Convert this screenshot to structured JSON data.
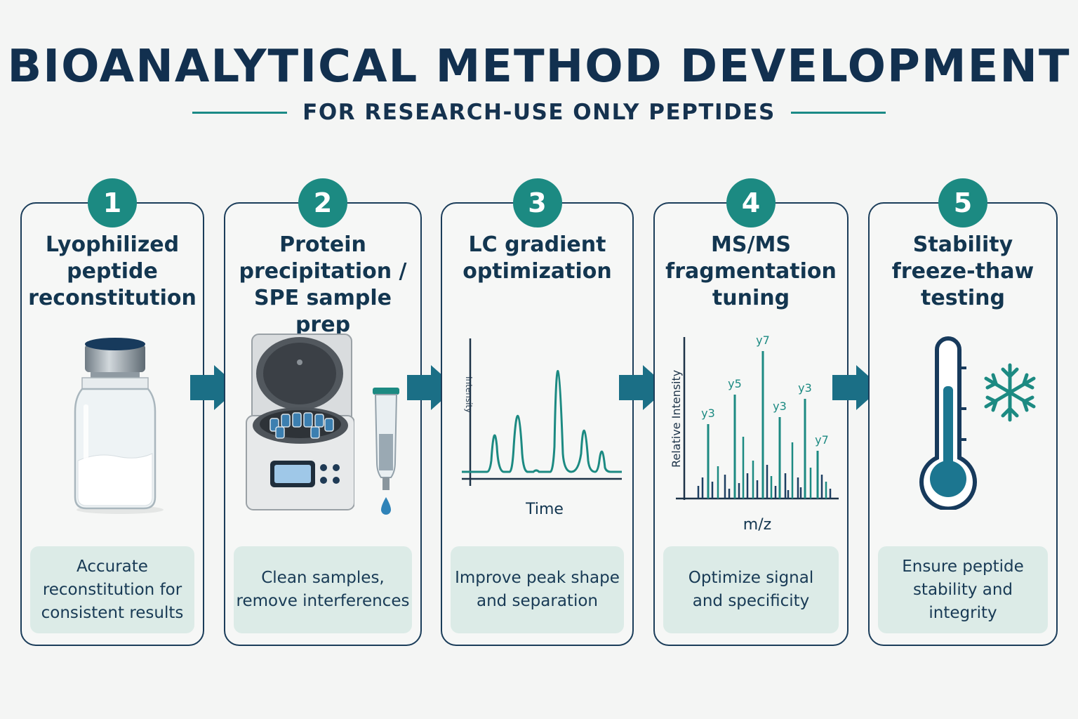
{
  "title": "BIOANALYTICAL METHOD DEVELOPMENT",
  "subtitle": "FOR RESEARCH-USE ONLY PEPTIDES",
  "colors": {
    "navy": "#12304f",
    "teal": "#1c8a82",
    "desc_bg": "#dcebe7"
  },
  "steps": [
    {
      "number": "1",
      "title": "Lyophilized\npeptide\nreconstitution",
      "description": "Accurate\nreconstitution for\nconsistent results",
      "icon": "vial-icon"
    },
    {
      "number": "2",
      "title": "Protein\nprecipitation /\nSPE sample prep",
      "description": "Clean samples,\nremove interferences",
      "icon": "centrifuge-icon"
    },
    {
      "number": "3",
      "title": "LC gradient\noptimization",
      "description": "Improve peak shape\nand separation",
      "icon": "chromatogram-icon"
    },
    {
      "number": "4",
      "title": "MS/MS\nfragmentation\ntuning",
      "description": "Optimize signal\nand specificity",
      "icon": "mass-spectrum-icon"
    },
    {
      "number": "5",
      "title": "Stability\nfreeze-thaw\ntesting",
      "description": "Ensure peptide\nstability and integrity",
      "icon": "thermometer-icon"
    }
  ],
  "chromatogram": {
    "ylabel": "Intensity",
    "xlabel": "Time"
  },
  "spectrum": {
    "ylabel": "Relative Intensity",
    "xlabel": "m/z",
    "peak_labels": [
      "y7",
      "y5",
      "y3",
      "y3",
      "y3",
      "y7"
    ]
  }
}
